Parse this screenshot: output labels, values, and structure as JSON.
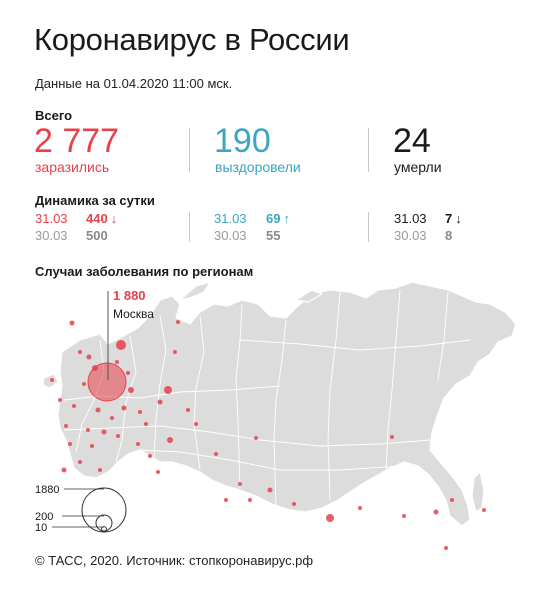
{
  "title": "Коронавирус в России",
  "as_of": "Данные на 01.04.2020 11:00 мск.",
  "total_label": "Всего",
  "stats": {
    "infected": {
      "value": "2 777",
      "label": "заразились",
      "color": "#e8414b"
    },
    "recovered": {
      "value": "190",
      "label": "выздоровели",
      "color": "#3aa6c2"
    },
    "deaths": {
      "value": "24",
      "label": "умерли",
      "color": "#1a1a1a"
    }
  },
  "daily_title": "Динамика за сутки",
  "daily": {
    "infected": [
      {
        "date": "31.03",
        "value": "440",
        "trend": "down"
      },
      {
        "date": "30.03",
        "value": "500"
      }
    ],
    "recovered": [
      {
        "date": "31.03",
        "value": "69",
        "trend": "up"
      },
      {
        "date": "30.03",
        "value": "55"
      }
    ],
    "deaths": [
      {
        "date": "31.03",
        "value": "7",
        "trend": "down"
      },
      {
        "date": "30.03",
        "value": "8"
      }
    ]
  },
  "regions_title": "Случаи заболевания по регионам",
  "moscow_callout": {
    "value": "1 880",
    "label": "Москва"
  },
  "legend": {
    "values": [
      "1880",
      "200",
      "10"
    ]
  },
  "source": "© ТАСС, 2020. Источник: стопкоронавирус.рф",
  "colors": {
    "accent": "#e8414b",
    "map_fill": "#dcdcdc",
    "map_stroke": "#ffffff"
  },
  "chart_data": {
    "type": "bubble-map",
    "title": "Случаи заболевания по регионам",
    "points": [
      {
        "region": "Москва",
        "value": 1880
      }
    ],
    "size_legend": [
      1880,
      200,
      10
    ]
  }
}
